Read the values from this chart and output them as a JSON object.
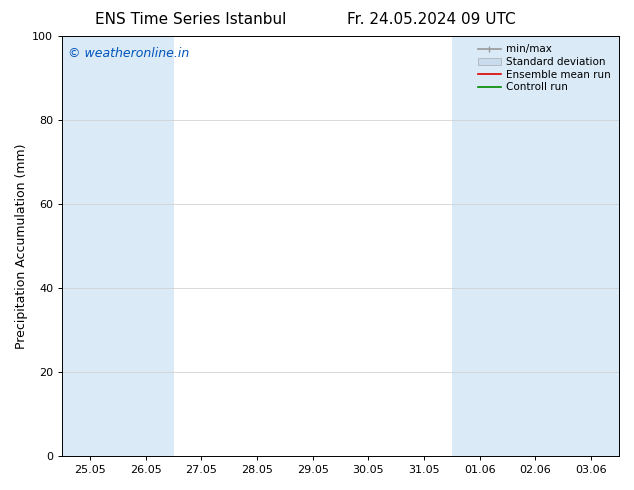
{
  "title_left": "ENS Time Series Istanbul",
  "title_right": "Fr. 24.05.2024 09 UTC",
  "ylabel": "Precipitation Accumulation (mm)",
  "ylim": [
    0,
    100
  ],
  "yticks": [
    0,
    20,
    40,
    60,
    80,
    100
  ],
  "x_tick_labels": [
    "25.05",
    "26.05",
    "27.05",
    "28.05",
    "29.05",
    "30.05",
    "31.05",
    "01.06",
    "02.06",
    "03.06"
  ],
  "watermark": "© weatheronline.in",
  "watermark_color": "#0055bb",
  "background_color": "#ffffff",
  "plot_bg_color": "#ffffff",
  "shaded_band_color": "#daeaf7",
  "shaded_indices": [
    0,
    1,
    7,
    8,
    9
  ],
  "legend_entries": [
    "min/max",
    "Standard deviation",
    "Ensemble mean run",
    "Controll run"
  ],
  "legend_colors_line": [
    "#999999",
    "#bbbbbb",
    "#dd0000",
    "#008800"
  ],
  "title_fontsize": 11,
  "ylabel_fontsize": 9,
  "tick_fontsize": 8,
  "watermark_fontsize": 9,
  "legend_fontsize": 7.5
}
